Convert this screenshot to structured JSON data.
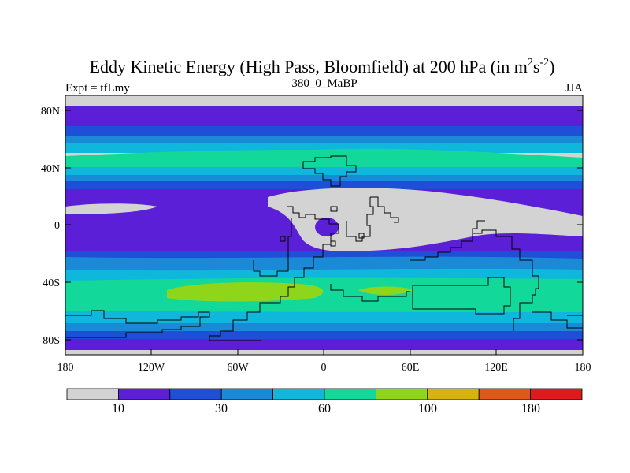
{
  "title": {
    "main": "Eddy Kinetic Energy (High Pass, Bloomfield) at 200 hPa (in m",
    "sup1": "2",
    "mid": "s",
    "sup2": "-2",
    "end": ")"
  },
  "subtitle_left": "Expt = tfLmy",
  "subtitle_center": "380_0_MaBP",
  "subtitle_right": "JJA",
  "lat_ticks": [
    "80N",
    "40N",
    "0",
    "40S",
    "80S"
  ],
  "lon_ticks": [
    "180",
    "120W",
    "60W",
    "0",
    "60E",
    "120E",
    "180"
  ],
  "colorbar": {
    "colors": [
      "#d3d3d3",
      "#5b1fd8",
      "#1f4fd6",
      "#1a8ad6",
      "#10b7dc",
      "#12d99a",
      "#8fd61a",
      "#d8b20e",
      "#e0571a",
      "#e01a1a"
    ],
    "labels": [
      "10",
      "30",
      "60",
      "100",
      "180"
    ]
  },
  "colors": {
    "background": "#d3d3d3",
    "coastline": "#000000"
  }
}
